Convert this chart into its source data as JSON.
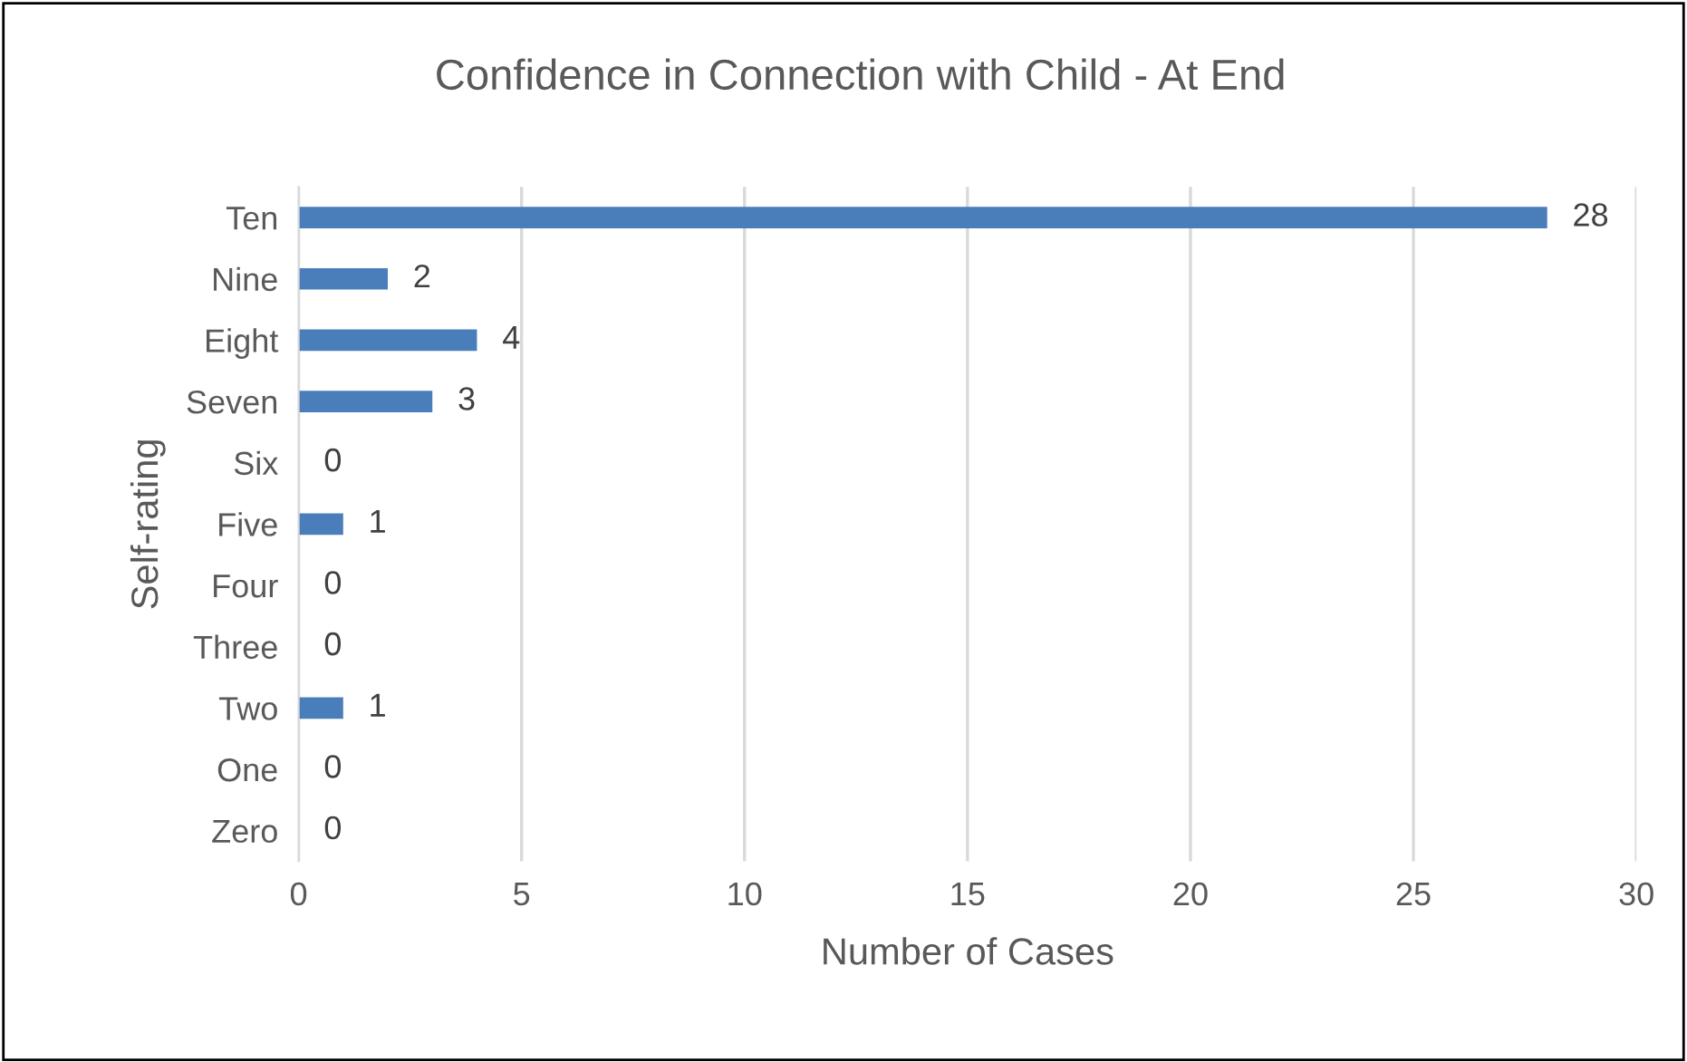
{
  "chart_data": {
    "type": "bar",
    "orientation": "horizontal",
    "title": "Confidence in Connection with Child - At End",
    "xlabel": "Number of Cases",
    "ylabel": "Self-rating",
    "categories": [
      "Ten",
      "Nine",
      "Eight",
      "Seven",
      "Six",
      "Five",
      "Four",
      "Three",
      "Two",
      "One",
      "Zero"
    ],
    "values": [
      28,
      2,
      4,
      3,
      0,
      1,
      0,
      0,
      1,
      0,
      0
    ],
    "color": "#4a7ebb",
    "xlim": [
      0,
      30
    ],
    "xticks": [
      0,
      5,
      10,
      15,
      20,
      25,
      30
    ],
    "grid": "x",
    "data_labels": true
  }
}
